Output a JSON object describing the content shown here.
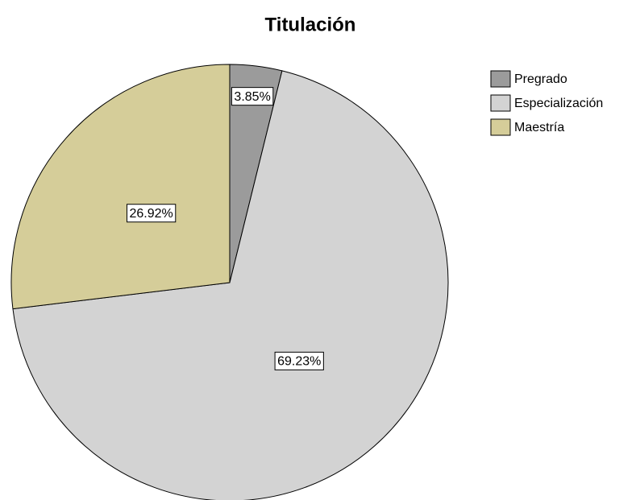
{
  "chart_data": {
    "type": "pie",
    "title": "Titulación",
    "categories": [
      "Pregrado",
      "Especialización",
      "Maestría"
    ],
    "values": [
      3.85,
      69.23,
      26.92
    ],
    "value_labels": [
      "3.85%",
      "69.23%",
      "26.92%"
    ],
    "colors": [
      "#9b9b9b",
      "#d3d3d3",
      "#d5cd99"
    ],
    "legend": "upper right"
  }
}
